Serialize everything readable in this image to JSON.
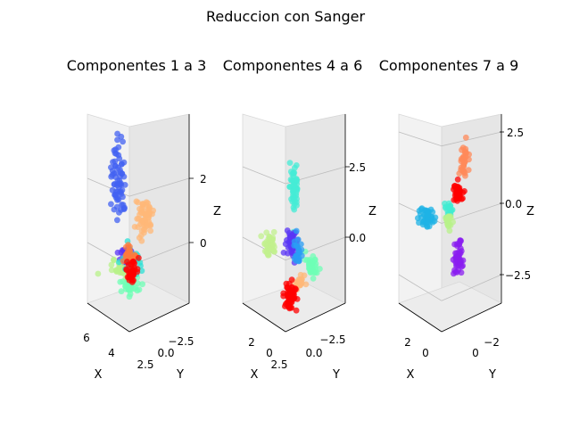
{
  "chart_data": {
    "type": "scatter",
    "suptitle": "Reduccion con Sanger",
    "panels": [
      {
        "title": "Componentes 1 a 3",
        "xlabel": "X",
        "ylabel": "Y",
        "zlabel": "Z",
        "x_ticks": [
          "6",
          "4"
        ],
        "y_ticks": [
          "2.5",
          "0.0",
          "−2.5"
        ],
        "z_ticks": [
          "2",
          "0"
        ],
        "clusters": [
          {
            "color": "#4361f2",
            "cx": 0.3,
            "cy": 0.27,
            "sx": 0.08,
            "sy": 0.25,
            "n": 70
          },
          {
            "color": "#ffb878",
            "cx": 0.58,
            "cy": 0.5,
            "sx": 0.09,
            "sy": 0.12,
            "n": 60
          },
          {
            "color": "#5a36f5",
            "cx": 0.4,
            "cy": 0.75,
            "sx": 0.1,
            "sy": 0.07,
            "n": 40
          },
          {
            "color": "#b8f28a",
            "cx": 0.32,
            "cy": 0.82,
            "sx": 0.14,
            "sy": 0.05,
            "n": 30
          },
          {
            "color": "#6fffb6",
            "cx": 0.42,
            "cy": 0.92,
            "sx": 0.1,
            "sy": 0.06,
            "n": 35
          },
          {
            "color": "#2ce0d6",
            "cx": 0.45,
            "cy": 0.77,
            "sx": 0.1,
            "sy": 0.07,
            "n": 30
          },
          {
            "color": "#ff7a3c",
            "cx": 0.42,
            "cy": 0.74,
            "sx": 0.08,
            "sy": 0.05,
            "n": 25
          },
          {
            "color": "#ff0000",
            "cx": 0.44,
            "cy": 0.83,
            "sx": 0.07,
            "sy": 0.06,
            "n": 35
          }
        ]
      },
      {
        "title": "Componentes 4 a 6",
        "xlabel": "X",
        "ylabel": "Y",
        "zlabel": "Z",
        "x_ticks": [
          "2",
          "0",
          "2.5"
        ],
        "y_ticks": [
          "0.0",
          "−2.5"
        ],
        "z_ticks": [
          "2.5",
          "0.0"
        ],
        "clusters": [
          {
            "color": "#46ecd6",
            "cx": 0.5,
            "cy": 0.3,
            "sx": 0.05,
            "sy": 0.15,
            "n": 55
          },
          {
            "color": "#c2f08e",
            "cx": 0.22,
            "cy": 0.6,
            "sx": 0.07,
            "sy": 0.07,
            "n": 40
          },
          {
            "color": "#6fffb6",
            "cx": 0.7,
            "cy": 0.73,
            "sx": 0.07,
            "sy": 0.06,
            "n": 40
          },
          {
            "color": "#5a36f5",
            "cx": 0.48,
            "cy": 0.62,
            "sx": 0.07,
            "sy": 0.08,
            "n": 40
          },
          {
            "color": "#2a9df4",
            "cx": 0.54,
            "cy": 0.66,
            "sx": 0.06,
            "sy": 0.06,
            "n": 25
          },
          {
            "color": "#ffb878",
            "cx": 0.55,
            "cy": 0.82,
            "sx": 0.05,
            "sy": 0.04,
            "n": 20
          },
          {
            "color": "#ff0000",
            "cx": 0.45,
            "cy": 0.9,
            "sx": 0.07,
            "sy": 0.08,
            "n": 55
          }
        ]
      },
      {
        "title": "Componentes 7 a 9",
        "xlabel": "X",
        "ylabel": "Y",
        "zlabel": "Z",
        "x_ticks": [
          "2",
          "0"
        ],
        "y_ticks": [
          "0",
          "−2"
        ],
        "z_ticks": [
          "2.5",
          "0.0",
          "−2.5"
        ],
        "clusters": [
          {
            "color": "#ff8a5a",
            "cx": 0.62,
            "cy": 0.2,
            "sx": 0.06,
            "sy": 0.14,
            "n": 35
          },
          {
            "color": "#ff0000",
            "cx": 0.56,
            "cy": 0.4,
            "sx": 0.06,
            "sy": 0.06,
            "n": 35
          },
          {
            "color": "#1fb3e6",
            "cx": 0.23,
            "cy": 0.53,
            "sx": 0.07,
            "sy": 0.06,
            "n": 50
          },
          {
            "color": "#40ecd2",
            "cx": 0.45,
            "cy": 0.5,
            "sx": 0.05,
            "sy": 0.05,
            "n": 20
          },
          {
            "color": "#b8f28a",
            "cx": 0.45,
            "cy": 0.55,
            "sx": 0.05,
            "sy": 0.05,
            "n": 20
          },
          {
            "color": "#8a1ef0",
            "cx": 0.55,
            "cy": 0.76,
            "sx": 0.05,
            "sy": 0.1,
            "n": 45
          }
        ]
      }
    ]
  }
}
